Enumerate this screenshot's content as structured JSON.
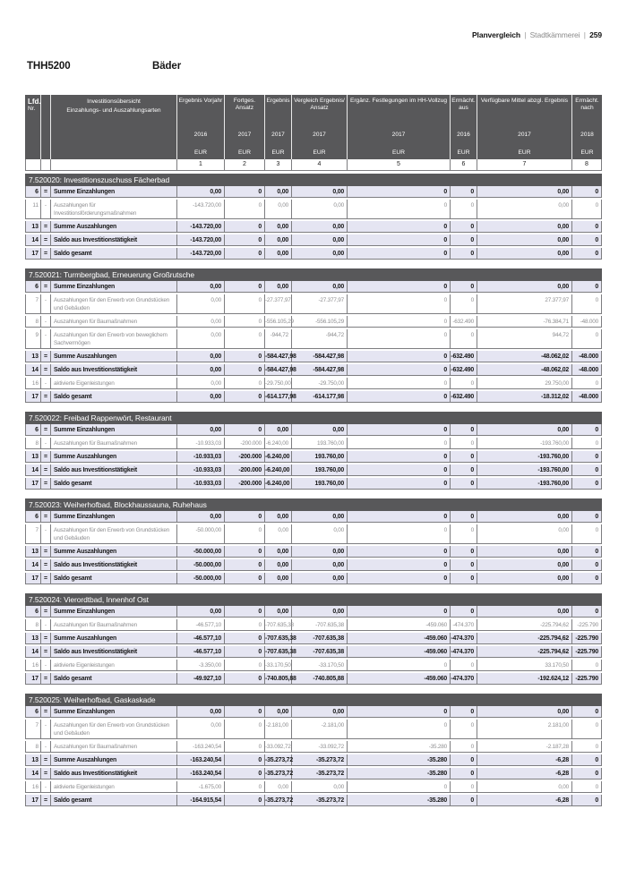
{
  "header": {
    "section": "Planvergleich",
    "separator": "|",
    "department": "Stadtkämmerei",
    "page_number": "259"
  },
  "title": {
    "code": "THH5200",
    "name": "Bäder"
  },
  "colors": {
    "bar": "#58585a",
    "row_highlight": "#e5e5f2",
    "grid_line": "#7d7d80",
    "muted_text": "#8e8e90",
    "text": "#161616"
  },
  "table": {
    "corner": {
      "line1": "Lfd.",
      "line2": "Nr."
    },
    "label_header": {
      "line1": "Investitionsübersicht",
      "line2": "Einzahlungs- und Auszahlungsarten"
    },
    "columns": [
      {
        "label": "Ergebnis Vorjahr",
        "year": "2016",
        "unit": "EUR",
        "number": "1"
      },
      {
        "label": "Fortges. Ansatz",
        "year": "2017",
        "unit": "EUR",
        "number": "2"
      },
      {
        "label": "Ergebnis",
        "year": "2017",
        "unit": "EUR",
        "number": "3"
      },
      {
        "label": "Vergleich Ergebnis/ Ansatz",
        "year": "2017",
        "unit": "EUR",
        "number": "4"
      },
      {
        "label": "Ergänz. Festlegungen im HH-Vollzug",
        "year": "2017",
        "unit": "EUR",
        "number": "5"
      },
      {
        "label": "Ermächt. aus",
        "year": "2016",
        "unit": "EUR",
        "number": "6"
      },
      {
        "label": "Verfügbare Mittel abzgl. Ergebnis",
        "year": "2017",
        "unit": "EUR",
        "number": "7"
      },
      {
        "label": "Ermächt. nach",
        "year": "2018",
        "unit": "EUR",
        "number": "8"
      }
    ]
  },
  "sections": [
    {
      "title": "7.520020: Investitionszuschuss Fächerbad",
      "rows": [
        {
          "num": "6",
          "op": "=",
          "label": "Summe Einzahlungen",
          "emphasis": true,
          "values": [
            "0,00",
            "0",
            "0,00",
            "0,00",
            "0",
            "0",
            "0,00",
            "0"
          ]
        },
        {
          "num": "11",
          "op": "-",
          "label": "Auszahlungen für Investitionsförderungsmaßnahmen",
          "emphasis": false,
          "values": [
            "-143.720,00",
            "0",
            "0,00",
            "0,00",
            "0",
            "0",
            "0,00",
            "0"
          ]
        },
        {
          "num": "13",
          "op": "=",
          "label": "Summe Auszahlungen",
          "emphasis": true,
          "values": [
            "-143.720,00",
            "0",
            "0,00",
            "0,00",
            "0",
            "0",
            "0,00",
            "0"
          ]
        },
        {
          "num": "14",
          "op": "=",
          "label": "Saldo aus Investitionstätigkeit",
          "emphasis": true,
          "values": [
            "-143.720,00",
            "0",
            "0,00",
            "0,00",
            "0",
            "0",
            "0,00",
            "0"
          ]
        },
        {
          "num": "17",
          "op": "=",
          "label": "Saldo gesamt",
          "emphasis": true,
          "values": [
            "-143.720,00",
            "0",
            "0,00",
            "0,00",
            "0",
            "0",
            "0,00",
            "0"
          ]
        }
      ]
    },
    {
      "title": "7.520021: Turmbergbad, Erneuerung Großrutsche",
      "rows": [
        {
          "num": "6",
          "op": "=",
          "label": "Summe Einzahlungen",
          "emphasis": true,
          "values": [
            "0,00",
            "0",
            "0,00",
            "0,00",
            "0",
            "0",
            "0,00",
            "0"
          ]
        },
        {
          "num": "7",
          "op": "-",
          "label": "Auszahlungen für den Erwerb von Grundstücken und Gebäuden",
          "emphasis": false,
          "values": [
            "0,00",
            "0",
            "-27.377,97",
            "-27.377,97",
            "0",
            "0",
            "27.377,97",
            "0"
          ]
        },
        {
          "num": "8",
          "op": "-",
          "label": "Auszahlungen für Baumaßnahmen",
          "emphasis": false,
          "values": [
            "0,00",
            "0",
            "-556.105,29",
            "-556.105,29",
            "0",
            "-632.490",
            "-76.384,71",
            "-48.000"
          ]
        },
        {
          "num": "9",
          "op": "-",
          "label": "Auszahlungen für den Erwerb von beweglichem Sachvermögen",
          "emphasis": false,
          "values": [
            "0,00",
            "0",
            "-944,72",
            "-944,72",
            "0",
            "0",
            "944,72",
            "0"
          ]
        },
        {
          "num": "13",
          "op": "=",
          "label": "Summe Auszahlungen",
          "emphasis": true,
          "values": [
            "0,00",
            "0",
            "-584.427,98",
            "-584.427,98",
            "0",
            "-632.490",
            "-48.062,02",
            "-48.000"
          ]
        },
        {
          "num": "14",
          "op": "=",
          "label": "Saldo aus Investitionstätigkeit",
          "emphasis": true,
          "values": [
            "0,00",
            "0",
            "-584.427,98",
            "-584.427,98",
            "0",
            "-632.490",
            "-48.062,02",
            "-48.000"
          ]
        },
        {
          "num": "16",
          "op": "-",
          "label": "aktivierte Eigenleistungen",
          "emphasis": false,
          "values": [
            "0,00",
            "0",
            "-29.750,00",
            "-29.750,00",
            "0",
            "0",
            "29.750,00",
            "0"
          ]
        },
        {
          "num": "17",
          "op": "=",
          "label": "Saldo gesamt",
          "emphasis": true,
          "values": [
            "0,00",
            "0",
            "-614.177,98",
            "-614.177,98",
            "0",
            "-632.490",
            "-18.312,02",
            "-48.000"
          ]
        }
      ]
    },
    {
      "title": "7.520022: Freibad Rappenwört, Restaurant",
      "rows": [
        {
          "num": "6",
          "op": "=",
          "label": "Summe Einzahlungen",
          "emphasis": true,
          "values": [
            "0,00",
            "0",
            "0,00",
            "0,00",
            "0",
            "0",
            "0,00",
            "0"
          ]
        },
        {
          "num": "8",
          "op": "-",
          "label": "Auszahlungen für Baumaßnahmen",
          "emphasis": false,
          "values": [
            "-10.933,03",
            "-200.000",
            "-6.240,00",
            "193.760,00",
            "0",
            "0",
            "-193.760,00",
            "0"
          ]
        },
        {
          "num": "13",
          "op": "=",
          "label": "Summe Auszahlungen",
          "emphasis": true,
          "values": [
            "-10.933,03",
            "-200.000",
            "-6.240,00",
            "193.760,00",
            "0",
            "0",
            "-193.760,00",
            "0"
          ]
        },
        {
          "num": "14",
          "op": "=",
          "label": "Saldo aus Investitionstätigkeit",
          "emphasis": true,
          "values": [
            "-10.933,03",
            "-200.000",
            "-6.240,00",
            "193.760,00",
            "0",
            "0",
            "-193.760,00",
            "0"
          ]
        },
        {
          "num": "17",
          "op": "=",
          "label": "Saldo gesamt",
          "emphasis": true,
          "values": [
            "-10.933,03",
            "-200.000",
            "-6.240,00",
            "193.760,00",
            "0",
            "0",
            "-193.760,00",
            "0"
          ]
        }
      ]
    },
    {
      "title": "7.520023: Weiherhofbad, Blockhaussauna, Ruhehaus",
      "rows": [
        {
          "num": "6",
          "op": "=",
          "label": "Summe Einzahlungen",
          "emphasis": true,
          "values": [
            "0,00",
            "0",
            "0,00",
            "0,00",
            "0",
            "0",
            "0,00",
            "0"
          ]
        },
        {
          "num": "7",
          "op": "-",
          "label": "Auszahlungen für den Erwerb von Grundstücken und Gebäuden",
          "emphasis": false,
          "values": [
            "-50.000,00",
            "0",
            "0,00",
            "0,00",
            "0",
            "0",
            "0,00",
            "0"
          ]
        },
        {
          "num": "13",
          "op": "=",
          "label": "Summe Auszahlungen",
          "emphasis": true,
          "values": [
            "-50.000,00",
            "0",
            "0,00",
            "0,00",
            "0",
            "0",
            "0,00",
            "0"
          ]
        },
        {
          "num": "14",
          "op": "=",
          "label": "Saldo aus Investitionstätigkeit",
          "emphasis": true,
          "values": [
            "-50.000,00",
            "0",
            "0,00",
            "0,00",
            "0",
            "0",
            "0,00",
            "0"
          ]
        },
        {
          "num": "17",
          "op": "=",
          "label": "Saldo gesamt",
          "emphasis": true,
          "values": [
            "-50.000,00",
            "0",
            "0,00",
            "0,00",
            "0",
            "0",
            "0,00",
            "0"
          ]
        }
      ]
    },
    {
      "title": "7.520024: Vierordtbad, Innenhof Ost",
      "rows": [
        {
          "num": "6",
          "op": "=",
          "label": "Summe Einzahlungen",
          "emphasis": true,
          "values": [
            "0,00",
            "0",
            "0,00",
            "0,00",
            "0",
            "0",
            "0,00",
            "0"
          ]
        },
        {
          "num": "8",
          "op": "-",
          "label": "Auszahlungen für Baumaßnahmen",
          "emphasis": false,
          "values": [
            "-46.577,10",
            "0",
            "-707.635,38",
            "-707.635,38",
            "-459.060",
            "-474.370",
            "-225.794,62",
            "-225.790"
          ]
        },
        {
          "num": "13",
          "op": "=",
          "label": "Summe Auszahlungen",
          "emphasis": true,
          "values": [
            "-46.577,10",
            "0",
            "-707.635,38",
            "-707.635,38",
            "-459.060",
            "-474.370",
            "-225.794,62",
            "-225.790"
          ]
        },
        {
          "num": "14",
          "op": "=",
          "label": "Saldo aus Investitionstätigkeit",
          "emphasis": true,
          "values": [
            "-46.577,10",
            "0",
            "-707.635,38",
            "-707.635,38",
            "-459.060",
            "-474.370",
            "-225.794,62",
            "-225.790"
          ]
        },
        {
          "num": "16",
          "op": "-",
          "label": "aktivierte Eigenleistungen",
          "emphasis": false,
          "values": [
            "-3.350,00",
            "0",
            "-33.170,50",
            "-33.170,50",
            "0",
            "0",
            "33.170,50",
            "0"
          ]
        },
        {
          "num": "17",
          "op": "=",
          "label": "Saldo gesamt",
          "emphasis": true,
          "values": [
            "-49.927,10",
            "0",
            "-740.805,88",
            "-740.805,88",
            "-459.060",
            "-474.370",
            "-192.624,12",
            "-225.790"
          ]
        }
      ]
    },
    {
      "title": "7.520025: Weiherhofbad, Gaskaskade",
      "rows": [
        {
          "num": "6",
          "op": "=",
          "label": "Summe Einzahlungen",
          "emphasis": true,
          "values": [
            "0,00",
            "0",
            "0,00",
            "0,00",
            "0",
            "0",
            "0,00",
            "0"
          ]
        },
        {
          "num": "7",
          "op": "-",
          "label": "Auszahlungen für den Erwerb von Grundstücken und Gebäuden",
          "emphasis": false,
          "values": [
            "0,00",
            "0",
            "-2.181,00",
            "-2.181,00",
            "0",
            "0",
            "2.181,00",
            "0"
          ]
        },
        {
          "num": "8",
          "op": "-",
          "label": "Auszahlungen für Baumaßnahmen",
          "emphasis": false,
          "values": [
            "-163.240,54",
            "0",
            "-33.092,72",
            "-33.092,72",
            "-35.280",
            "0",
            "-2.187,28",
            "0"
          ]
        },
        {
          "num": "13",
          "op": "=",
          "label": "Summe Auszahlungen",
          "emphasis": true,
          "values": [
            "-163.240,54",
            "0",
            "-35.273,72",
            "-35.273,72",
            "-35.280",
            "0",
            "-6,28",
            "0"
          ]
        },
        {
          "num": "14",
          "op": "=",
          "label": "Saldo aus Investitionstätigkeit",
          "emphasis": true,
          "values": [
            "-163.240,54",
            "0",
            "-35.273,72",
            "-35.273,72",
            "-35.280",
            "0",
            "-6,28",
            "0"
          ]
        },
        {
          "num": "16",
          "op": "-",
          "label": "aktivierte Eigenleistungen",
          "emphasis": false,
          "values": [
            "-1.675,00",
            "0",
            "0,00",
            "0,00",
            "0",
            "0",
            "0,00",
            "0"
          ]
        },
        {
          "num": "17",
          "op": "=",
          "label": "Saldo gesamt",
          "emphasis": true,
          "values": [
            "-164.915,54",
            "0",
            "-35.273,72",
            "-35.273,72",
            "-35.280",
            "0",
            "-6,28",
            "0"
          ]
        }
      ]
    }
  ]
}
